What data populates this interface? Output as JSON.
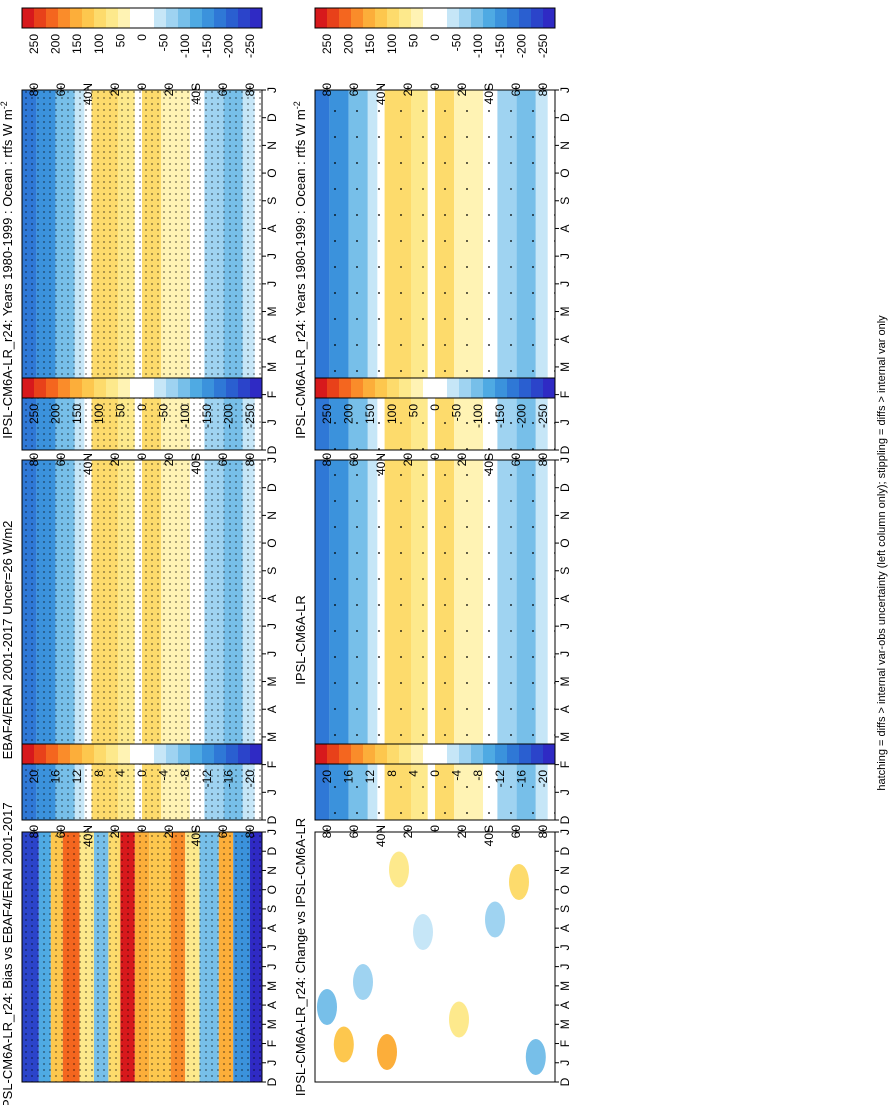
{
  "figure": {
    "footnote": "hatching = diffs > internal var-obs uncertainty (left column only); stippling = diffs > internal var only"
  },
  "chart_data": [
    {
      "type": "heatmap",
      "title": "IPSL-CM6A-LR_r24: Years 1980-1999 : Ocean : rtfs W m",
      "title_sup": "-2",
      "month_labels": [
        "D",
        "J",
        "F",
        "M",
        "A",
        "M",
        "J",
        "J",
        "A",
        "S",
        "O",
        "N",
        "D",
        "J"
      ],
      "lat_labels": [
        "80",
        "60",
        "40N",
        "20",
        "0",
        "20",
        "40S",
        "60",
        "80"
      ],
      "colorbar_labels": [
        "250",
        "200",
        "150",
        "100",
        "50",
        "0",
        "-50",
        "-100",
        "-150",
        "-200",
        "-250"
      ],
      "colorbar_colors": [
        "#d7191c",
        "#e8411a",
        "#f4661f",
        "#fa8c2a",
        "#fcae3a",
        "#fdc74e",
        "#fddb6c",
        "#fde98c",
        "#fff3b4",
        "#ffffff",
        "#ffffff",
        "#c6e6f7",
        "#9fd3f1",
        "#77bfe9",
        "#4faae3",
        "#3b92dc",
        "#2f78d6",
        "#2a5fd0",
        "#2b44ca",
        "#2f2ac4"
      ],
      "stipple": "dense"
    },
    {
      "type": "heatmap",
      "title": "IPSL-CM6A-LR_r24: Years 1980-1999 : Ocean : rtfs W m",
      "title_sup": "-2",
      "month_labels": [
        "D",
        "J",
        "F",
        "M",
        "A",
        "M",
        "J",
        "J",
        "A",
        "S",
        "O",
        "N",
        "D",
        "J"
      ],
      "lat_labels": [
        "80",
        "60",
        "40N",
        "20",
        "0",
        "20",
        "40S",
        "60",
        "80"
      ],
      "colorbar_labels": [
        "250",
        "200",
        "150",
        "100",
        "50",
        "0",
        "-50",
        "-100",
        "-150",
        "-200",
        "-250"
      ],
      "colorbar_colors": [
        "#d7191c",
        "#e8411a",
        "#f4661f",
        "#fa8c2a",
        "#fcae3a",
        "#fdc74e",
        "#fddb6c",
        "#fde98c",
        "#fff3b4",
        "#ffffff",
        "#ffffff",
        "#c6e6f7",
        "#9fd3f1",
        "#77bfe9",
        "#4faae3",
        "#3b92dc",
        "#2f78d6",
        "#2a5fd0",
        "#2b44ca",
        "#2f2ac4"
      ],
      "stipple": "sparse"
    },
    {
      "type": "heatmap",
      "title": "EBAF4/ERAI 2001-2017 Uncer=26 W/m2",
      "title_sup": "",
      "month_labels": [
        "D",
        "J",
        "F",
        "M",
        "A",
        "M",
        "J",
        "J",
        "A",
        "S",
        "O",
        "N",
        "D",
        "J"
      ],
      "lat_labels": [
        "80",
        "60",
        "40N",
        "20",
        "0",
        "20",
        "40S",
        "60",
        "80"
      ],
      "colorbar_labels": [
        "250",
        "200",
        "150",
        "100",
        "50",
        "0",
        "-50",
        "-100",
        "-150",
        "-200",
        "-250"
      ],
      "colorbar_colors": [
        "#d7191c",
        "#e8411a",
        "#f4661f",
        "#fa8c2a",
        "#fcae3a",
        "#fdc74e",
        "#fddb6c",
        "#fde98c",
        "#fff3b4",
        "#ffffff",
        "#ffffff",
        "#c6e6f7",
        "#9fd3f1",
        "#77bfe9",
        "#4faae3",
        "#3b92dc",
        "#2f78d6",
        "#2a5fd0",
        "#2b44ca",
        "#2f2ac4"
      ],
      "stipple": "dense"
    },
    {
      "type": "heatmap",
      "title": "IPSL-CM6A-LR",
      "title_sup": "",
      "month_labels": [
        "D",
        "J",
        "F",
        "M",
        "A",
        "M",
        "J",
        "J",
        "A",
        "S",
        "O",
        "N",
        "D",
        "J"
      ],
      "lat_labels": [
        "80",
        "60",
        "40N",
        "20",
        "0",
        "20",
        "40S",
        "60",
        "80"
      ],
      "colorbar_labels": [
        "250",
        "200",
        "150",
        "100",
        "50",
        "0",
        "-50",
        "-100",
        "-150",
        "-200",
        "-250"
      ],
      "colorbar_colors": [
        "#d7191c",
        "#e8411a",
        "#f4661f",
        "#fa8c2a",
        "#fcae3a",
        "#fdc74e",
        "#fddb6c",
        "#fde98c",
        "#fff3b4",
        "#ffffff",
        "#ffffff",
        "#c6e6f7",
        "#9fd3f1",
        "#77bfe9",
        "#4faae3",
        "#3b92dc",
        "#2f78d6",
        "#2a5fd0",
        "#2b44ca",
        "#2f2ac4"
      ],
      "stipple": "sparse"
    },
    {
      "type": "heatmap",
      "title": "IPSL-CM6A-LR_r24: Bias vs EBAF4/ERAI 2001-2017",
      "title_sup": "",
      "month_labels": [
        "D",
        "J",
        "F",
        "M",
        "A",
        "M",
        "J",
        "J",
        "A",
        "S",
        "O",
        "N",
        "D",
        "J"
      ],
      "lat_labels": [
        "80",
        "60",
        "40N",
        "20",
        "0",
        "20",
        "40S",
        "60",
        "80"
      ],
      "colorbar_labels": [
        "20",
        "16",
        "12",
        "8",
        "4",
        "0",
        "-4",
        "-8",
        "-12",
        "-16",
        "-20"
      ],
      "colorbar_colors": [
        "#d7191c",
        "#e8411a",
        "#f4661f",
        "#fa8c2a",
        "#fcae3a",
        "#fdc74e",
        "#fddb6c",
        "#fde98c",
        "#fff3b4",
        "#ffffff",
        "#ffffff",
        "#c6e6f7",
        "#9fd3f1",
        "#77bfe9",
        "#4faae3",
        "#3b92dc",
        "#2f78d6",
        "#2a5fd0",
        "#2b44ca",
        "#2f2ac4"
      ],
      "stipple": "dense"
    },
    {
      "type": "heatmap",
      "title": "IPSL-CM6A-LR_r24: Change vs IPSL-CM6A-LR",
      "title_sup": "",
      "month_labels": [
        "D",
        "J",
        "F",
        "M",
        "A",
        "M",
        "J",
        "J",
        "A",
        "S",
        "O",
        "N",
        "D",
        "J"
      ],
      "lat_labels": [
        "80",
        "60",
        "40N",
        "20",
        "0",
        "20",
        "40S",
        "60",
        "80"
      ],
      "colorbar_labels": [
        "20",
        "16",
        "12",
        "8",
        "4",
        "0",
        "-4",
        "-8",
        "-12",
        "-16",
        "-20"
      ],
      "colorbar_colors": [
        "#d7191c",
        "#e8411a",
        "#f4661f",
        "#fa8c2a",
        "#fcae3a",
        "#fdc74e",
        "#fddb6c",
        "#fde98c",
        "#fff3b4",
        "#ffffff",
        "#ffffff",
        "#c6e6f7",
        "#9fd3f1",
        "#77bfe9",
        "#4faae3",
        "#3b92dc",
        "#2f78d6",
        "#2a5fd0",
        "#2b44ca",
        "#2f2ac4"
      ],
      "stipple": "none"
    }
  ]
}
